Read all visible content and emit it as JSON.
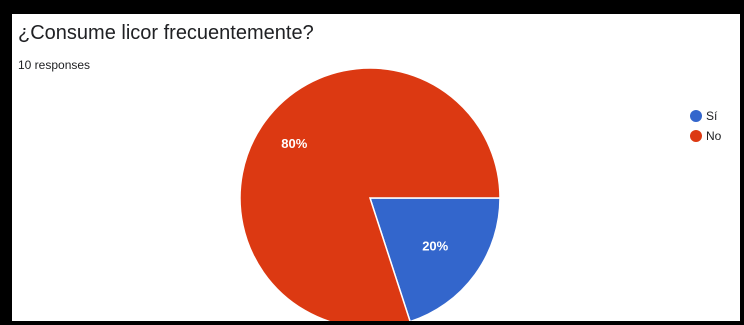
{
  "header": {
    "title": "¿Consume licor frecuentemente?",
    "responses": "10 responses"
  },
  "chart_data": {
    "type": "pie",
    "title": "¿Consume licor frecuentemente?",
    "categories": [
      "Sí",
      "No"
    ],
    "values": [
      20,
      80
    ],
    "value_labels": [
      "20%",
      "80%"
    ],
    "colors": [
      "#3366cc",
      "#dc3912"
    ],
    "legend_position": "right"
  }
}
